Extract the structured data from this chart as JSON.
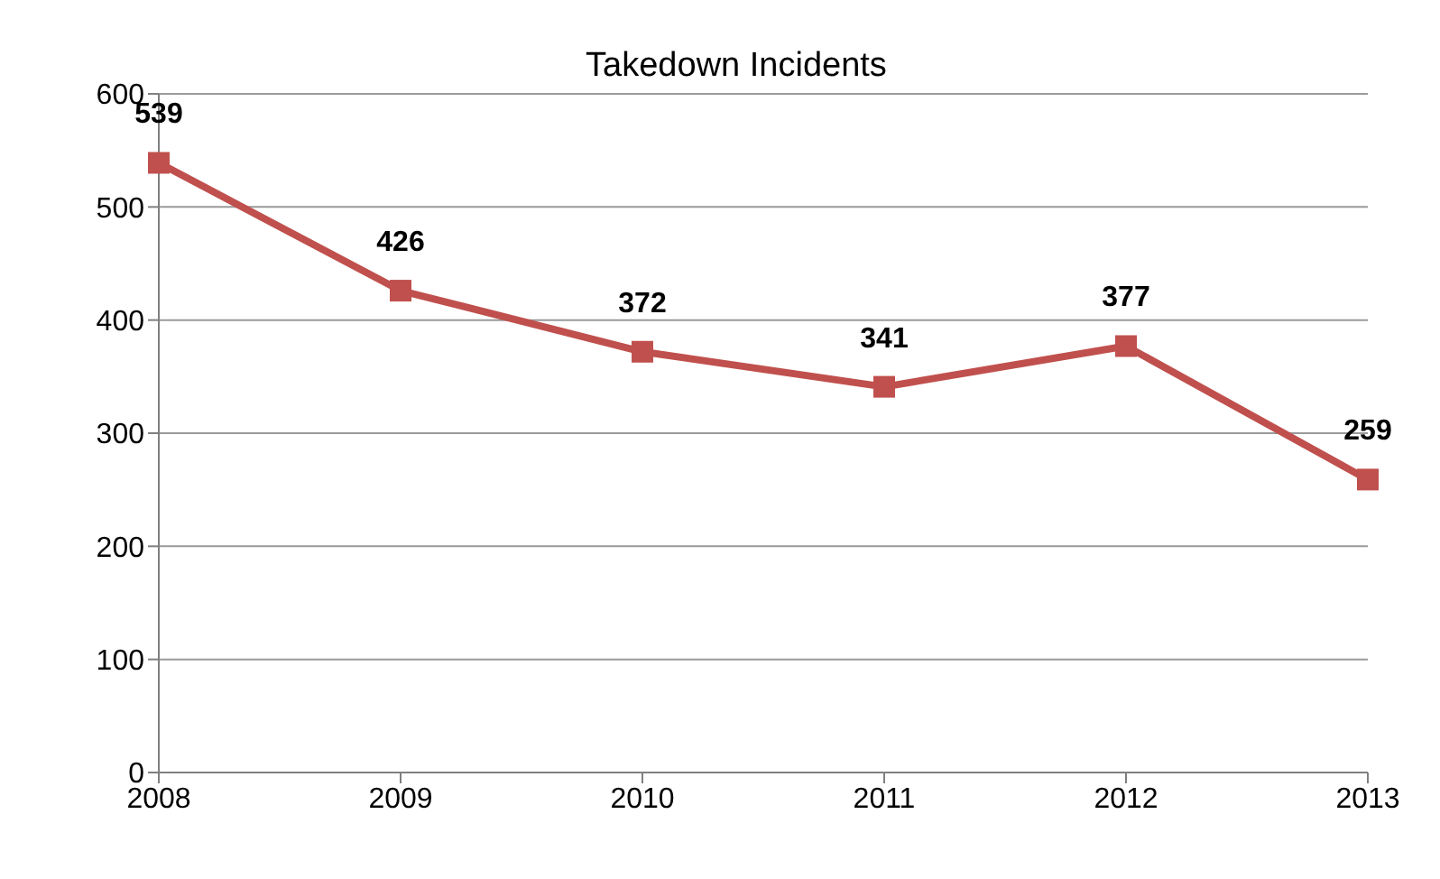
{
  "chart_data": {
    "type": "line",
    "title": "Takedown Incidents",
    "categories": [
      "2008",
      "2009",
      "2010",
      "2011",
      "2012",
      "2013"
    ],
    "series": [
      {
        "color": "#c0504d",
        "values": [
          539,
          426,
          372,
          341,
          377,
          259
        ]
      }
    ],
    "ylim": [
      0,
      600
    ],
    "yticks": [
      0,
      100,
      200,
      300,
      400,
      500,
      600
    ],
    "grid": "y",
    "marker": "square",
    "data_labels": true,
    "legend": false
  }
}
